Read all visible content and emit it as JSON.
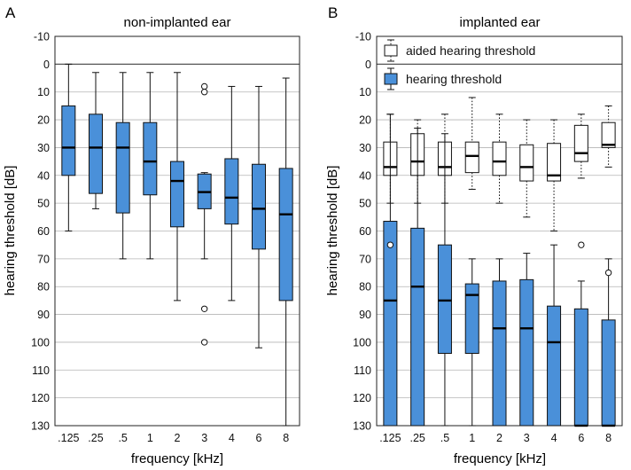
{
  "chart_data": [
    {
      "type": "box",
      "panel_label": "A",
      "title": "non-implanted ear",
      "xlabel": "frequency [kHz]",
      "ylabel": "hearing threshold [dB]",
      "ylim": [
        130,
        -10
      ],
      "yticks": [
        -10,
        0,
        10,
        20,
        30,
        40,
        50,
        60,
        70,
        80,
        90,
        100,
        110,
        120,
        130
      ],
      "grid": true,
      "categories": [
        ".125",
        ".25",
        ".5",
        "1",
        "2",
        "3",
        "4",
        "6",
        "8"
      ],
      "series": [
        {
          "name": "hearing threshold",
          "fill": "#4a90d9",
          "whisker_style": "solid",
          "boxes": [
            {
              "q1": 15,
              "median": 30,
              "q3": 40,
              "whisker_low": 0,
              "whisker_high": 60,
              "outliers": []
            },
            {
              "q1": 18,
              "median": 30,
              "q3": 46.5,
              "whisker_low": 3,
              "whisker_high": 52,
              "outliers": []
            },
            {
              "q1": 21,
              "median": 30,
              "q3": 53.5,
              "whisker_low": 3,
              "whisker_high": 70,
              "outliers": []
            },
            {
              "q1": 21,
              "median": 35,
              "q3": 47,
              "whisker_low": 3,
              "whisker_high": 70,
              "outliers": []
            },
            {
              "q1": 35,
              "median": 42,
              "q3": 58.5,
              "whisker_low": 3,
              "whisker_high": 85,
              "outliers": []
            },
            {
              "q1": 39.5,
              "median": 46,
              "q3": 52,
              "whisker_low": 39,
              "whisker_high": 70,
              "outliers": [
                8,
                10,
                88,
                100
              ]
            },
            {
              "q1": 34,
              "median": 48,
              "q3": 57.5,
              "whisker_low": 8,
              "whisker_high": 85,
              "outliers": []
            },
            {
              "q1": 36,
              "median": 52,
              "q3": 66.5,
              "whisker_low": 8,
              "whisker_high": 102,
              "outliers": []
            },
            {
              "q1": 37.5,
              "median": 54,
              "q3": 85,
              "whisker_low": 5,
              "whisker_high": 130,
              "outliers": []
            }
          ]
        }
      ]
    },
    {
      "type": "box",
      "panel_label": "B",
      "title": "implanted ear",
      "xlabel": "frequency [kHz]",
      "ylabel": "hearing threshold [dB]",
      "ylim": [
        130,
        -10
      ],
      "yticks": [
        -10,
        0,
        10,
        20,
        30,
        40,
        50,
        60,
        70,
        80,
        90,
        100,
        110,
        120,
        130
      ],
      "grid": true,
      "legend_position": "top",
      "categories": [
        ".125",
        ".25",
        ".5",
        "1",
        "2",
        "3",
        "4",
        "6",
        "8"
      ],
      "series": [
        {
          "name": "aided hearing threshold",
          "fill": "#ffffff",
          "whisker_style": "dotted",
          "boxes": [
            {
              "q1": 28,
              "median": 37,
              "q3": 40,
              "whisker_low": 18,
              "whisker_high": 50,
              "outliers": []
            },
            {
              "q1": 25,
              "median": 35,
              "q3": 40,
              "whisker_low": 20,
              "whisker_high": 50,
              "outliers": []
            },
            {
              "q1": 28,
              "median": 37,
              "q3": 40,
              "whisker_low": 18,
              "whisker_high": 50,
              "outliers": []
            },
            {
              "q1": 28,
              "median": 33,
              "q3": 39,
              "whisker_low": 12,
              "whisker_high": 45,
              "outliers": []
            },
            {
              "q1": 28,
              "median": 35,
              "q3": 40,
              "whisker_low": 18,
              "whisker_high": 50,
              "outliers": []
            },
            {
              "q1": 29,
              "median": 37,
              "q3": 42,
              "whisker_low": 20,
              "whisker_high": 55,
              "outliers": []
            },
            {
              "q1": 28.5,
              "median": 40,
              "q3": 42,
              "whisker_low": 20,
              "whisker_high": 60,
              "outliers": []
            },
            {
              "q1": 22,
              "median": 32,
              "q3": 35,
              "whisker_low": 18,
              "whisker_high": 41,
              "outliers": []
            },
            {
              "q1": 21,
              "median": 29,
              "q3": 30,
              "whisker_low": 15,
              "whisker_high": 37,
              "outliers": []
            }
          ]
        },
        {
          "name": "hearing threshold",
          "fill": "#4a90d9",
          "whisker_style": "solid",
          "boxes": [
            {
              "q1": 56.5,
              "median": 85,
              "q3": 130,
              "whisker_low": 18,
              "whisker_high": 130,
              "outliers": [
                65
              ]
            },
            {
              "q1": 59,
              "median": 80,
              "q3": 130,
              "whisker_low": 23,
              "whisker_high": 130,
              "outliers": []
            },
            {
              "q1": 65,
              "median": 85,
              "q3": 104,
              "whisker_low": 25,
              "whisker_high": 130,
              "outliers": []
            },
            {
              "q1": 79,
              "median": 83,
              "q3": 104,
              "whisker_low": 70,
              "whisker_high": 130,
              "outliers": []
            },
            {
              "q1": 78,
              "median": 95,
              "q3": 130,
              "whisker_low": 70,
              "whisker_high": 130,
              "outliers": []
            },
            {
              "q1": 77.5,
              "median": 95,
              "q3": 130,
              "whisker_low": 68,
              "whisker_high": 130,
              "outliers": []
            },
            {
              "q1": 87,
              "median": 100,
              "q3": 130,
              "whisker_low": 65,
              "whisker_high": 130,
              "outliers": []
            },
            {
              "q1": 88,
              "median": 130,
              "q3": 130,
              "whisker_low": 78,
              "whisker_high": 130,
              "outliers": [
                65
              ]
            },
            {
              "q1": 92,
              "median": 130,
              "q3": 130,
              "whisker_low": 70,
              "whisker_high": 130,
              "outliers": [
                75
              ]
            }
          ]
        }
      ]
    }
  ]
}
